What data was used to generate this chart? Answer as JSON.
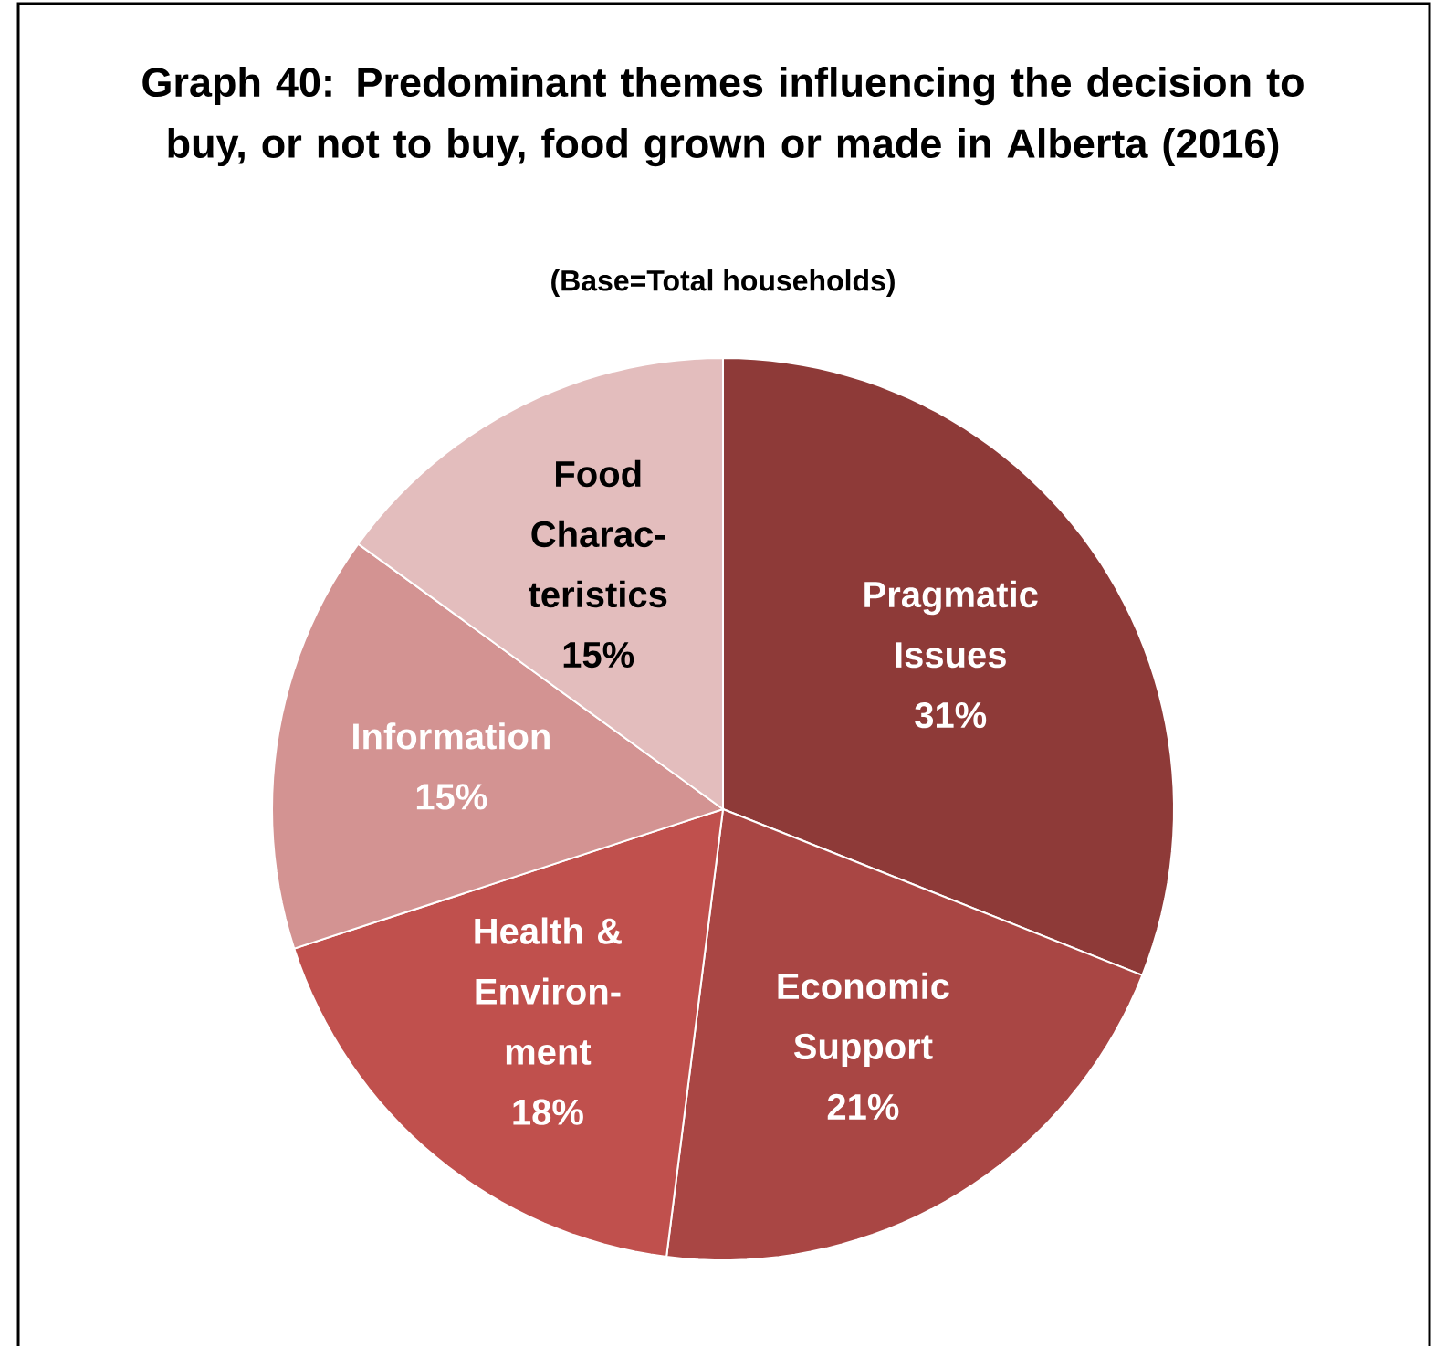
{
  "chart_data": {
    "type": "pie",
    "title": "Graph 40: Predominant themes influencing the decision to buy, or not to buy, food grown or made in Alberta (2016)",
    "subtitle": "(Base=Total households)",
    "categories": [
      "Pragmatic Issues",
      "Economic Support",
      "Health & Environ-ment",
      "Information",
      "Food Charac-teristics"
    ],
    "values": [
      31,
      21,
      18,
      15,
      15
    ],
    "value_labels": [
      "31%",
      "21%",
      "18%",
      "15%",
      "15%"
    ],
    "colors": [
      "#8e3a38",
      "#a94644",
      "#c0504d",
      "#d39392",
      "#e3bdbd"
    ]
  }
}
